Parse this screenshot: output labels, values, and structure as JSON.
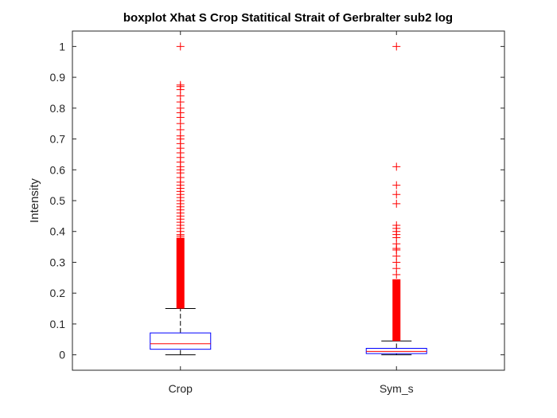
{
  "chart_data": {
    "type": "boxplot",
    "title": "boxplot Xhat S Crop Statitical Strait of Gerbralter sub2 log",
    "xlabel": "",
    "ylabel": "Intensity",
    "ylim": [
      -0.05,
      1.05
    ],
    "yticks": [
      0,
      0.1,
      0.2,
      0.3,
      0.4,
      0.5,
      0.6,
      0.7,
      0.8,
      0.9,
      1
    ],
    "yticklabels": [
      "0",
      "0.1",
      "0.2",
      "0.3",
      "0.4",
      "0.5",
      "0.6",
      "0.7",
      "0.8",
      "0.9",
      "1"
    ],
    "categories": [
      "Crop",
      "Sym_s"
    ],
    "grid": false,
    "box_color": "#0000ff",
    "median_color": "#ff0000",
    "whisker_color": "#000000",
    "outlier_color": "#ff0000",
    "boxes": [
      {
        "name": "Crop",
        "whisker_low": 0.0,
        "q1": 0.018,
        "median": 0.036,
        "q3": 0.071,
        "whisker_high": 0.15,
        "outlier_dense_range": [
          0.15,
          0.38
        ],
        "outliers": [
          0.385,
          0.39,
          0.4,
          0.41,
          0.42,
          0.43,
          0.44,
          0.45,
          0.46,
          0.47,
          0.48,
          0.49,
          0.5,
          0.51,
          0.52,
          0.53,
          0.54,
          0.55,
          0.56,
          0.575,
          0.59,
          0.6,
          0.61,
          0.625,
          0.64,
          0.655,
          0.67,
          0.685,
          0.7,
          0.71,
          0.73,
          0.75,
          0.77,
          0.785,
          0.8,
          0.82,
          0.84,
          0.86,
          0.87,
          0.875,
          1.0
        ]
      },
      {
        "name": "Sym_s",
        "whisker_low": 0.0,
        "q1": 0.004,
        "median": 0.011,
        "q3": 0.021,
        "whisker_high": 0.045,
        "outlier_dense_range": [
          0.045,
          0.245
        ],
        "outliers": [
          0.26,
          0.28,
          0.3,
          0.32,
          0.34,
          0.345,
          0.36,
          0.38,
          0.39,
          0.4,
          0.41,
          0.42,
          0.49,
          0.52,
          0.55,
          0.61,
          1.0
        ]
      }
    ]
  }
}
